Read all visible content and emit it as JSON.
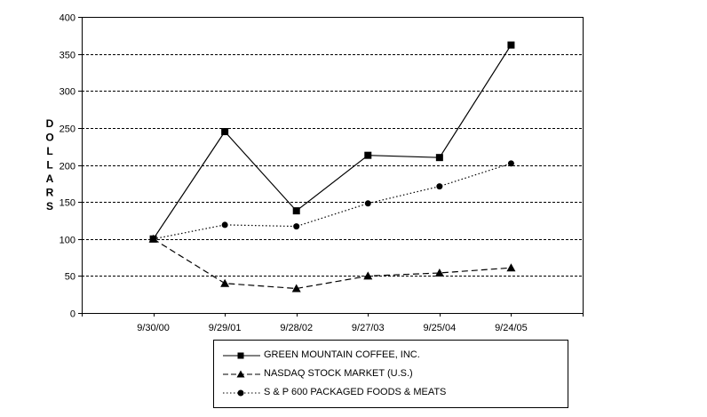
{
  "chart_data": {
    "type": "line",
    "title": "",
    "xlabel": "",
    "ylabel": "DOLLARS",
    "ylim": [
      0,
      400
    ],
    "yticks": [
      "0",
      "50",
      "100",
      "150",
      "200",
      "250",
      "300",
      "350",
      "400"
    ],
    "categories": [
      "9/30/00",
      "9/29/01",
      "9/28/02",
      "9/27/03",
      "9/25/04",
      "9/24/05"
    ],
    "grid": "horizontal dashed",
    "legend_position": "bottom",
    "series": [
      {
        "name": "GREEN MOUNTAIN COFFEE, INC.",
        "marker": "square",
        "line": "solid",
        "values": [
          100,
          245,
          138,
          213,
          210,
          362
        ]
      },
      {
        "name": "NASDAQ STOCK MARKET (U.S.)",
        "marker": "triangle",
        "line": "dashed",
        "values": [
          100,
          40,
          33,
          50,
          54,
          61
        ]
      },
      {
        "name": "S & P 600 PACKAGED FOODS & MEATS",
        "marker": "circle",
        "line": "dotted",
        "values": [
          100,
          119,
          117,
          148,
          171,
          202
        ]
      }
    ]
  }
}
